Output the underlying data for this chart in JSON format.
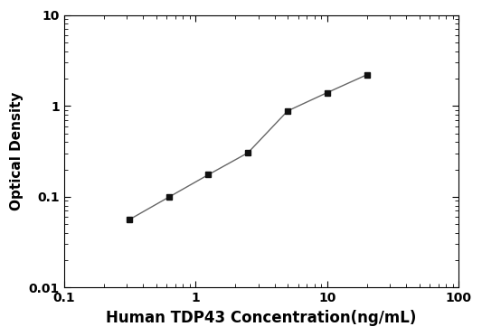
{
  "x_values": [
    0.313,
    0.625,
    1.25,
    2.5,
    5.0,
    10.0,
    20.0
  ],
  "y_values": [
    0.056,
    0.099,
    0.175,
    0.305,
    0.88,
    1.4,
    2.2
  ],
  "xlabel": "Human TDP43 Concentration(ng/mL)",
  "ylabel": "Optical Density",
  "xlim": [
    0.1,
    100
  ],
  "ylim": [
    0.01,
    10
  ],
  "line_color": "#666666",
  "marker_color": "#111111",
  "marker": "s",
  "marker_size": 5,
  "linewidth": 1.0,
  "background_color": "#ffffff",
  "xticks": [
    0.1,
    1,
    10,
    100
  ],
  "yticks": [
    0.01,
    0.1,
    1,
    10
  ],
  "xtick_labels": [
    "0.1",
    "1",
    "10",
    "100"
  ],
  "ytick_labels": [
    "0.01",
    "0.1",
    "1",
    "10"
  ],
  "xlabel_fontsize": 12,
  "ylabel_fontsize": 11,
  "tick_labelsize": 10
}
